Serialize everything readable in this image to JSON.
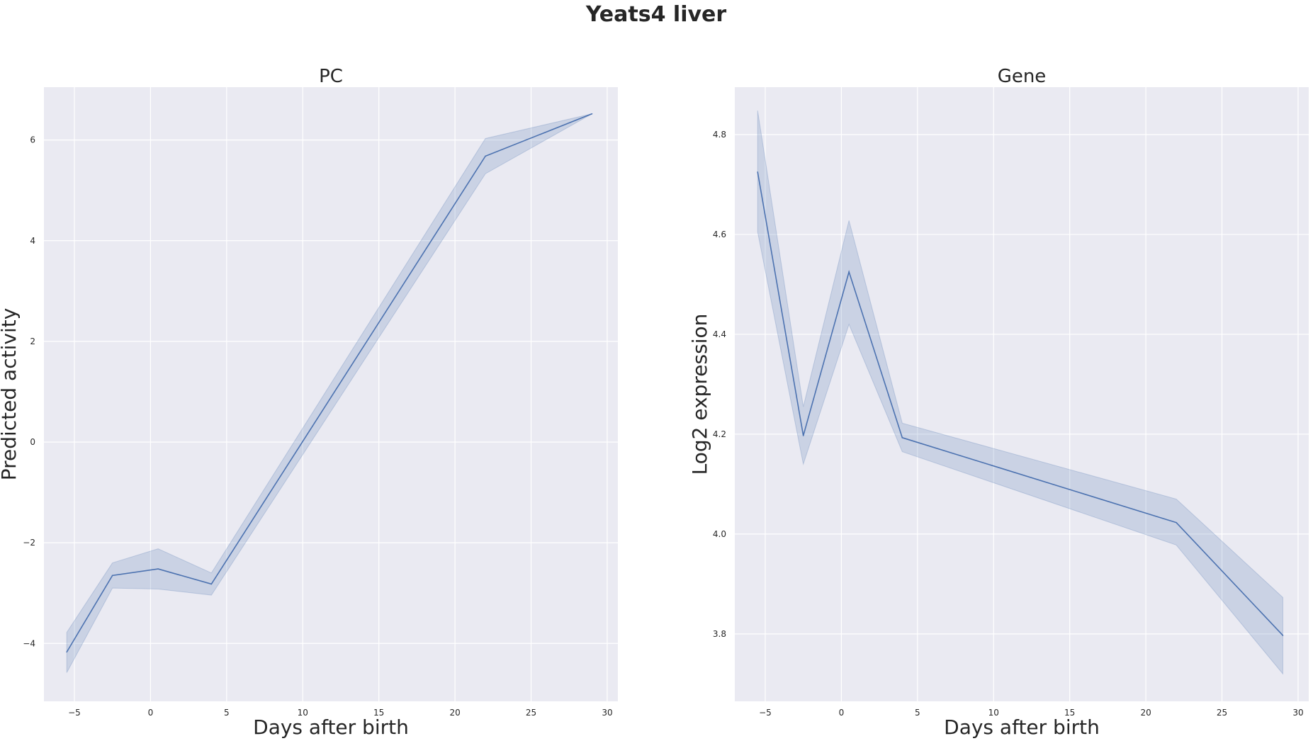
{
  "figure_title": "Yeats4 liver",
  "chart_data": [
    {
      "type": "line",
      "title": "PC",
      "xlabel": "Days after birth",
      "ylabel": "Predicted activity",
      "xlim": [
        -7,
        30.7
      ],
      "ylim": [
        -5.15,
        7.05
      ],
      "xticks": [
        -5,
        0,
        5,
        10,
        15,
        20,
        25,
        30
      ],
      "xtick_labels": [
        "−5",
        "0",
        "5",
        "10",
        "15",
        "20",
        "25",
        "30"
      ],
      "yticks": [
        -4,
        -2,
        0,
        2,
        4,
        6
      ],
      "ytick_labels": [
        "−4",
        "−2",
        "0",
        "2",
        "4",
        "6"
      ],
      "grid": true,
      "series": [
        {
          "x": [
            -5.5,
            -2.5,
            0.5,
            4,
            22,
            29
          ],
          "y": [
            -4.17,
            -2.65,
            -2.52,
            -2.82,
            5.68,
            6.52
          ],
          "ci_low": [
            -4.58,
            -2.9,
            -2.92,
            -3.04,
            5.33,
            6.52
          ],
          "ci_high": [
            -3.78,
            -2.4,
            -2.12,
            -2.6,
            6.03,
            6.52
          ]
        }
      ]
    },
    {
      "type": "line",
      "title": "Gene",
      "xlabel": "Days after birth",
      "ylabel": "Log2 expression",
      "xlim": [
        -7,
        30.7
      ],
      "ylim": [
        3.665,
        4.895
      ],
      "xticks": [
        -5,
        0,
        5,
        10,
        15,
        20,
        25,
        30
      ],
      "xtick_labels": [
        "−5",
        "0",
        "5",
        "10",
        "15",
        "20",
        "25",
        "30"
      ],
      "yticks": [
        3.8,
        4.0,
        4.2,
        4.4,
        4.6,
        4.8
      ],
      "ytick_labels": [
        "3.8",
        "4.0",
        "4.2",
        "4.4",
        "4.6",
        "4.8"
      ],
      "grid": true,
      "series": [
        {
          "x": [
            -5.5,
            -2.5,
            0.5,
            4,
            22,
            29
          ],
          "y": [
            4.725,
            4.197,
            4.525,
            4.193,
            4.023,
            3.797
          ],
          "ci_low": [
            4.605,
            4.14,
            4.42,
            4.165,
            3.978,
            3.72
          ],
          "ci_high": [
            4.848,
            4.255,
            4.628,
            4.222,
            4.07,
            3.873
          ]
        }
      ]
    }
  ],
  "colors": {
    "axes_background": "#eaeaf2",
    "grid": "#ffffff",
    "line": "#4c72b0",
    "band": "#4c72b0",
    "text": "#262626"
  }
}
